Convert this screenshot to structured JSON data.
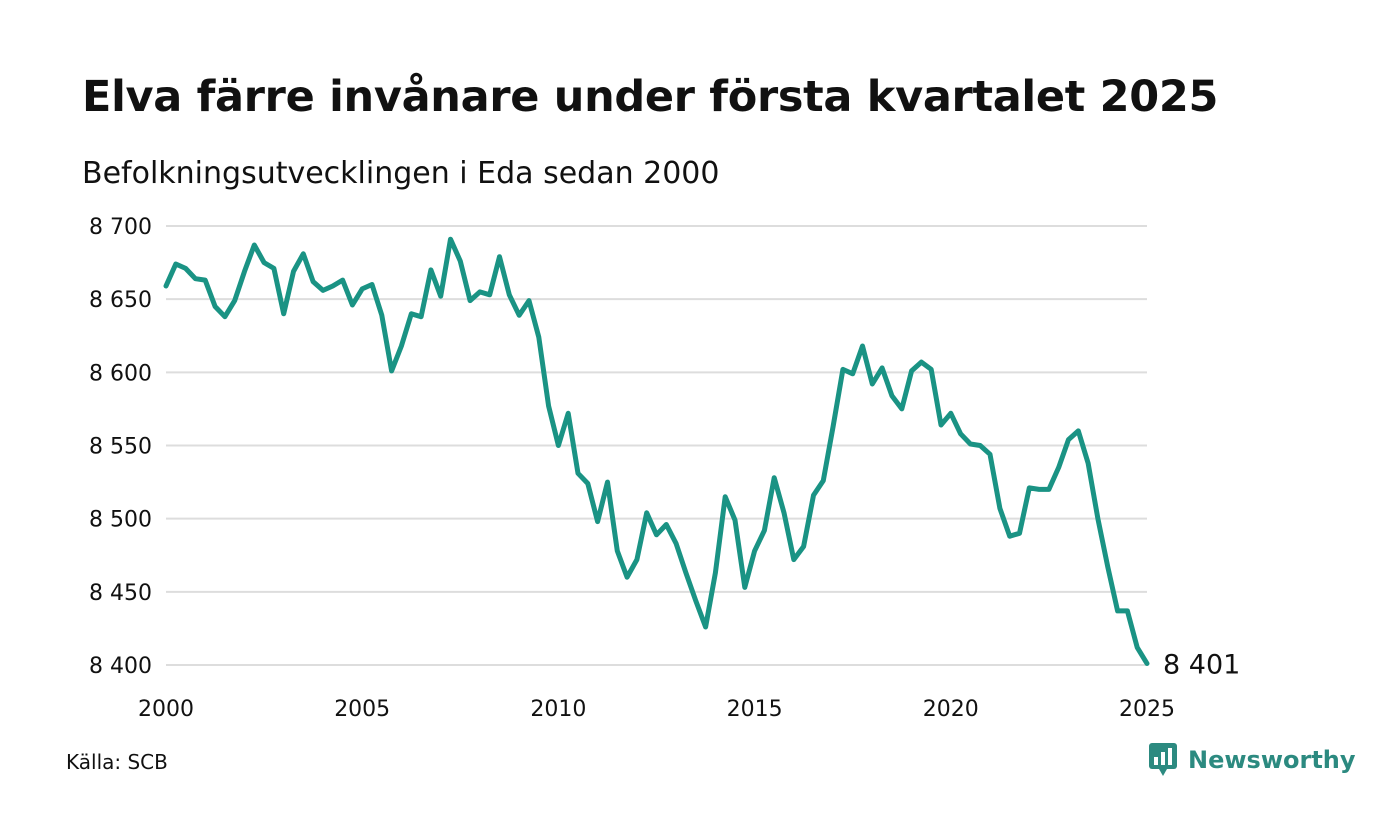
{
  "header": {
    "title": "Elva färre invånare under första kvartalet 2025",
    "subtitle": "Befolkningsutvecklingen i Eda sedan 2000"
  },
  "footer": {
    "source": "Källa: SCB",
    "brand": "Newsworthy"
  },
  "colors": {
    "line": "#1a9384",
    "grid": "#dddddd",
    "brand": "#2c8a80"
  },
  "chart_data": {
    "type": "line",
    "title": "Elva färre invånare under första kvartalet 2025",
    "subtitle": "Befolkningsutvecklingen i Eda sedan 2000",
    "xlabel": "",
    "ylabel": "",
    "xlim": [
      2000,
      2025
    ],
    "ylim": [
      8400,
      8700
    ],
    "yticks": [
      8400,
      8450,
      8500,
      8550,
      8600,
      8650,
      8700
    ],
    "ytick_labels": [
      "8 400",
      "8 450",
      "8 500",
      "8 550",
      "8 600",
      "8 650",
      "8 700"
    ],
    "xticks": [
      2000,
      2005,
      2010,
      2015,
      2020,
      2025
    ],
    "xtick_labels": [
      "2000",
      "2005",
      "2010",
      "2015",
      "2020",
      "2025"
    ],
    "grid": true,
    "end_label": "8 401",
    "x": [
      2000.0,
      2000.25,
      2000.5,
      2000.75,
      2001.0,
      2001.25,
      2001.5,
      2001.75,
      2002.0,
      2002.25,
      2002.5,
      2002.75,
      2003.0,
      2003.25,
      2003.5,
      2003.75,
      2004.0,
      2004.25,
      2004.5,
      2004.75,
      2005.0,
      2005.25,
      2005.5,
      2005.75,
      2006.0,
      2006.25,
      2006.5,
      2006.75,
      2007.0,
      2007.25,
      2007.5,
      2007.75,
      2008.0,
      2008.25,
      2008.5,
      2008.75,
      2009.0,
      2009.25,
      2009.5,
      2009.75,
      2010.0,
      2010.25,
      2010.5,
      2010.75,
      2011.0,
      2011.25,
      2011.5,
      2011.75,
      2012.0,
      2012.25,
      2012.5,
      2012.75,
      2013.0,
      2013.25,
      2013.5,
      2013.75,
      2014.0,
      2014.25,
      2014.5,
      2014.75,
      2015.0,
      2015.25,
      2015.5,
      2015.75,
      2016.0,
      2016.25,
      2016.5,
      2016.75,
      2017.0,
      2017.25,
      2017.5,
      2017.75,
      2018.0,
      2018.25,
      2018.5,
      2018.75,
      2019.0,
      2019.25,
      2019.5,
      2019.75,
      2020.0,
      2020.25,
      2020.5,
      2020.75,
      2021.0,
      2021.25,
      2021.5,
      2021.75,
      2022.0,
      2022.25,
      2022.5,
      2022.75,
      2023.0,
      2023.25,
      2023.5,
      2023.75,
      2024.0,
      2024.25,
      2024.5,
      2024.75,
      2025.0
    ],
    "series": [
      {
        "values": [
          8659,
          8674,
          8671,
          8664,
          8663,
          8645,
          8638,
          8649,
          8669,
          8687,
          8675,
          8671,
          8640,
          8669,
          8681,
          8662,
          8656,
          8659,
          8663,
          8646,
          8657,
          8660,
          8639,
          8601,
          8618,
          8640,
          8638,
          8670,
          8652,
          8691,
          8676,
          8649,
          8655,
          8653,
          8679,
          8653,
          8639,
          8649,
          8624,
          8577,
          8550,
          8572,
          8531,
          8524,
          8498,
          8525,
          8478,
          8460,
          8472,
          8504,
          8489,
          8496,
          8483,
          8463,
          8444,
          8426,
          8463,
          8515,
          8499,
          8453,
          8478,
          8492,
          8528,
          8504,
          8472,
          8481,
          8516,
          8526,
          8563,
          8602,
          8599,
          8618,
          8592,
          8603,
          8584,
          8575,
          8601,
          8607,
          8602,
          8564,
          8572,
          8558,
          8551,
          8550,
          8544,
          8507,
          8488,
          8490,
          8521,
          8520,
          8520,
          8535,
          8554,
          8560,
          8538,
          8500,
          8467,
          8437,
          8437,
          8412,
          8401
        ]
      }
    ]
  }
}
